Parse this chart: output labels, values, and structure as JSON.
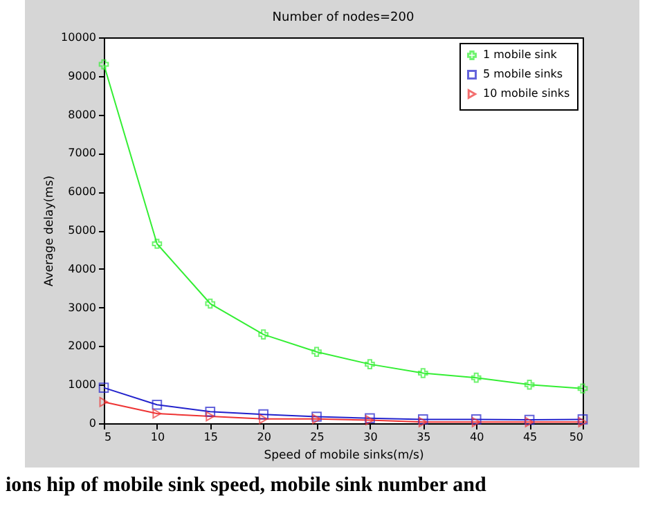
{
  "chart_data": {
    "type": "line",
    "title": "Number of nodes=200",
    "xlabel": "Speed of mobile sinks(m/s)",
    "ylabel": "Average delay(ms)",
    "x": [
      5,
      10,
      15,
      20,
      25,
      30,
      35,
      40,
      45,
      50
    ],
    "series": [
      {
        "name": "1 mobile sink",
        "color": "#33ee33",
        "marker": "cross",
        "values": [
          9300,
          4650,
          3100,
          2300,
          1850,
          1530,
          1300,
          1180,
          1000,
          900
        ]
      },
      {
        "name": "5 mobile sinks",
        "color": "#2222cc",
        "marker": "square",
        "values": [
          920,
          480,
          300,
          230,
          170,
          130,
          100,
          100,
          90,
          100
        ]
      },
      {
        "name": "10 mobile sinks",
        "color": "#ee3333",
        "marker": "triangle",
        "values": [
          550,
          250,
          180,
          110,
          110,
          80,
          30,
          30,
          30,
          30
        ]
      }
    ],
    "xlim": [
      5,
      50
    ],
    "xticks": [
      5,
      10,
      15,
      20,
      25,
      30,
      35,
      40,
      45,
      50
    ],
    "ylim": [
      0,
      10000
    ],
    "yticks": [
      0,
      1000,
      2000,
      3000,
      4000,
      5000,
      6000,
      7000,
      8000,
      9000,
      10000
    ],
    "grid": false,
    "legend": "top right",
    "annotations": [
      "ions hip of mobile sink speed, mobile sink number and"
    ]
  }
}
